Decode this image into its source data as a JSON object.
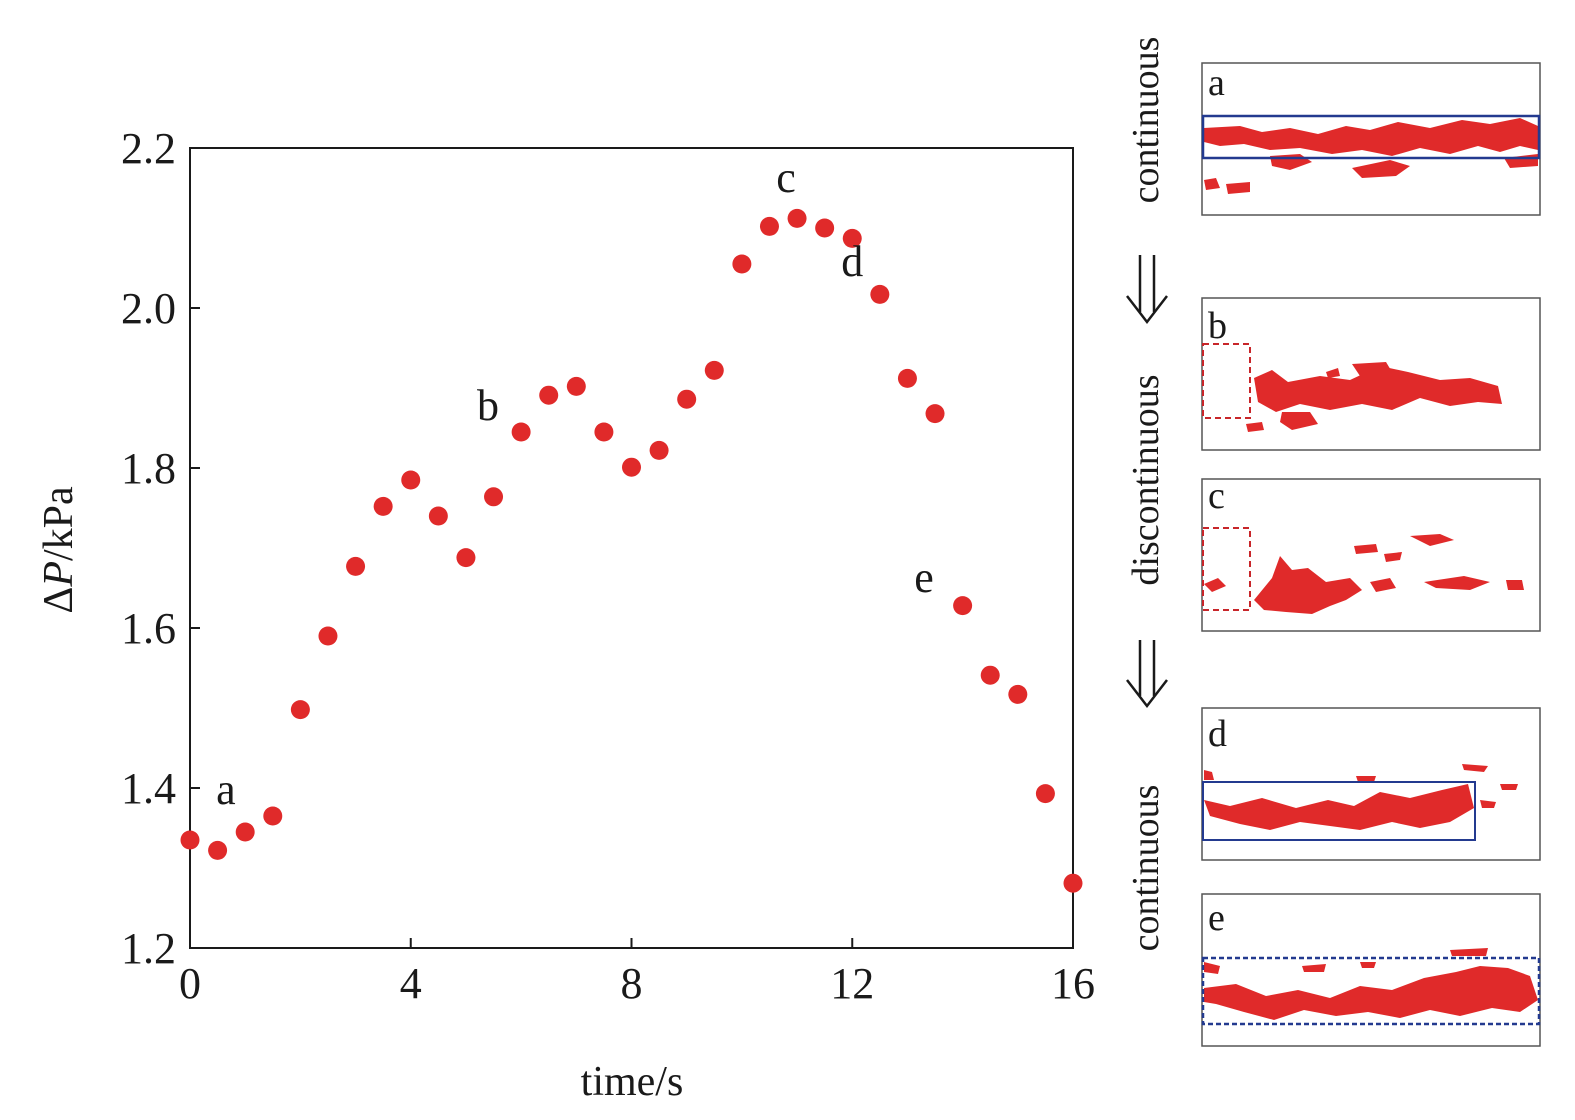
{
  "chart_data": {
    "type": "scatter",
    "xlabel": "time/s",
    "ylabel": "ΔP/kPa",
    "ylabel_prefix": "Δ",
    "ylabel_italic": "P",
    "ylabel_suffix": "/kPa",
    "xlim": [
      0,
      16
    ],
    "ylim": [
      1.2,
      2.2
    ],
    "xticks": [
      "0",
      "4",
      "8",
      "12",
      "16"
    ],
    "yticks": [
      "1.2",
      "1.4",
      "1.6",
      "1.8",
      "2.0",
      "2.2"
    ],
    "grid": false,
    "marker_color": "#e02a2a",
    "series": [
      {
        "x": [
          0,
          0.5,
          1,
          1.5,
          2,
          2.5,
          3,
          3.5,
          4,
          4.5,
          5,
          5.5,
          6,
          6.5,
          7,
          7.5,
          8,
          8.5,
          9,
          9.5,
          10,
          10.5,
          11,
          11.5,
          12,
          12.5,
          13,
          13.5,
          14,
          14.5,
          15,
          15.5,
          16
        ],
        "y": [
          1.335,
          1.322,
          1.345,
          1.365,
          1.498,
          1.59,
          1.677,
          1.752,
          1.785,
          1.74,
          1.688,
          1.764,
          1.845,
          1.891,
          1.902,
          1.845,
          1.801,
          1.822,
          1.886,
          1.922,
          2.055,
          2.102,
          2.112,
          2.1,
          2.087,
          2.017,
          1.912,
          1.868,
          1.628,
          1.541,
          1.517,
          1.393,
          1.281
        ]
      }
    ],
    "annotations": [
      {
        "text": "a",
        "x": 0.65,
        "y": 1.38
      },
      {
        "text": "b",
        "x": 5.4,
        "y": 1.86
      },
      {
        "text": "c",
        "x": 10.8,
        "y": 2.145
      },
      {
        "text": "d",
        "x": 12.0,
        "y": 2.04
      },
      {
        "text": "e",
        "x": 13.3,
        "y": 1.645
      }
    ]
  },
  "flow_labels": {
    "top": "continuous",
    "middle": "discontinuous",
    "bottom": "continuous"
  },
  "panels": [
    {
      "label": "a",
      "box_style": "solid"
    },
    {
      "label": "b",
      "box_style": "dashed"
    },
    {
      "label": "c",
      "box_style": "dashed"
    },
    {
      "label": "d",
      "box_style": "solid"
    },
    {
      "label": "e",
      "box_style": "dashed"
    }
  ],
  "colors": {
    "marker": "#e02a2a",
    "blob": "#e02a2a",
    "blue_box": "#233a8f",
    "red_box": "#c8262a",
    "axis": "#1a1a1a"
  }
}
